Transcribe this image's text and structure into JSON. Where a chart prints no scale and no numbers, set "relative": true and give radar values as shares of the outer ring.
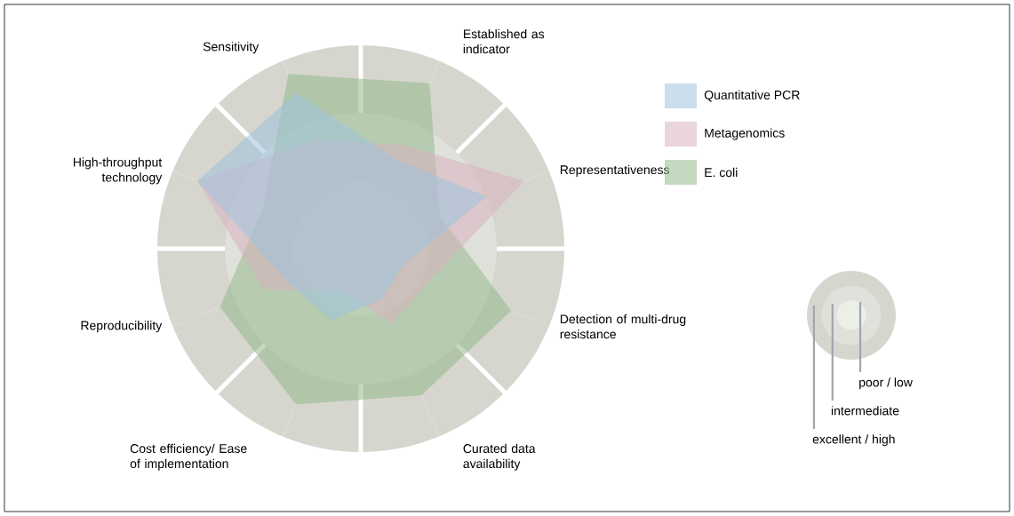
{
  "chart_data": {
    "type": "radar",
    "relative": true,
    "categories": [
      "Sensitivity",
      "Established as indicator",
      "Representativeness",
      "Detection of multi-drug resistance",
      "Curated data availability",
      "Cost efficiency/ Ease of implementation",
      "Reproducibility",
      "High-throughput technology"
    ],
    "grid": true,
    "legend": "right",
    "annotations": [
      "poor / low",
      "intermediate",
      "excellent / high"
    ],
    "series": [
      {
        "name": "Quantitative PCR",
        "color": "#9fc3de",
        "values": [
          0.83,
          0.47,
          0.67,
          0.22,
          0.27,
          0.38,
          0.4,
          0.87
        ]
      },
      {
        "name": "Metagenomics",
        "color": "#d9b3bf",
        "values": [
          0.58,
          0.55,
          0.87,
          0.38,
          0.4,
          0.23,
          0.52,
          0.87
        ]
      },
      {
        "name": "E. coli",
        "color": "#94b98a",
        "values": [
          0.93,
          0.88,
          0.42,
          0.8,
          0.78,
          0.83,
          0.75,
          0.52
        ]
      }
    ]
  }
}
